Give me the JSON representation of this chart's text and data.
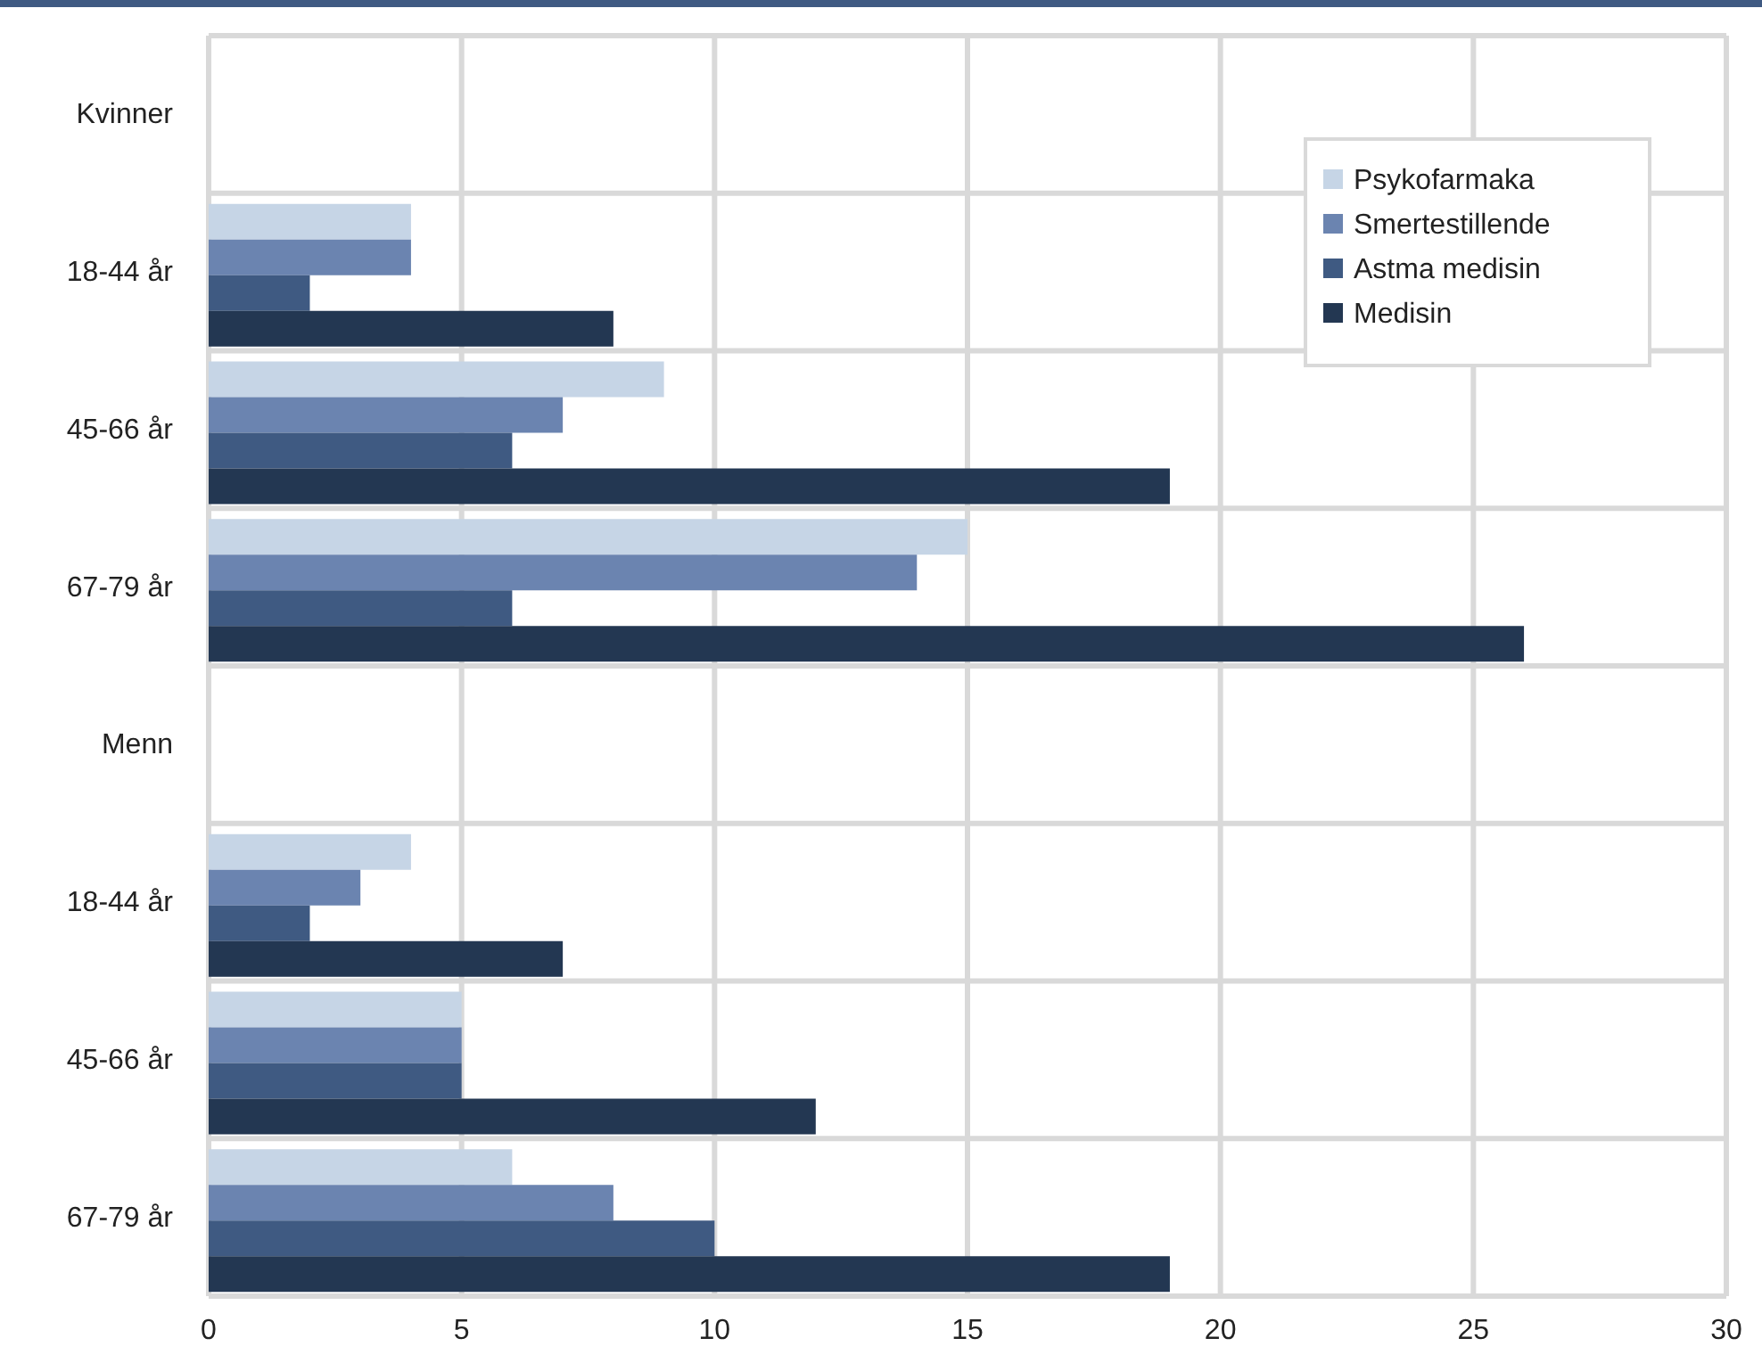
{
  "chart_data": {
    "type": "bar",
    "orientation": "horizontal",
    "categories": [
      "Kvinner",
      "18-44 år",
      "45-66 år",
      "67-79 år",
      "Menn",
      "18-44 år",
      "45-66 år",
      "67-79 år"
    ],
    "series": [
      {
        "name": "Psykofarmaka",
        "color": "#c6d5e6",
        "values": [
          null,
          4,
          9,
          15,
          null,
          4,
          5,
          6
        ]
      },
      {
        "name": "Smertestillende",
        "color": "#6b84b0",
        "values": [
          null,
          4,
          7,
          14,
          null,
          3,
          5,
          8
        ]
      },
      {
        "name": "Astma medisin",
        "color": "#3f5a82",
        "values": [
          null,
          2,
          6,
          6,
          null,
          2,
          5,
          10
        ]
      },
      {
        "name": "Medisin",
        "color": "#233752",
        "values": [
          null,
          8,
          19,
          26,
          null,
          7,
          12,
          19
        ]
      }
    ],
    "xlim": [
      0,
      30
    ],
    "xticks": [
      0,
      5,
      10,
      15,
      20,
      25,
      30
    ],
    "grid": true,
    "legend": "top right"
  }
}
